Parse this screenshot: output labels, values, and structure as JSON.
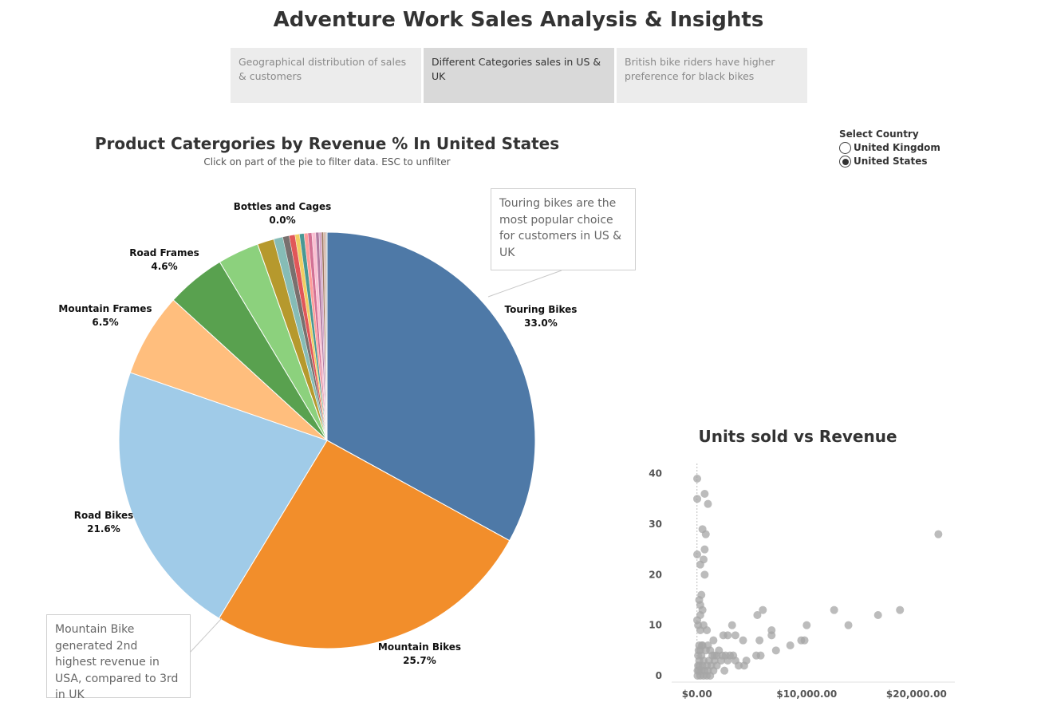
{
  "page": {
    "title": "Adventure Work Sales Analysis & Insights",
    "tabs": [
      {
        "label": "Geographical distribution of sales & customers",
        "active": false
      },
      {
        "label": "Different Categories sales in US & UK",
        "active": true
      },
      {
        "label": "British bike riders have higher preference for black bikes",
        "active": false
      }
    ]
  },
  "filter": {
    "title": "Select Country",
    "options": [
      {
        "label": "United Kingdom",
        "selected": false
      },
      {
        "label": "United States",
        "selected": true
      }
    ]
  },
  "callouts": {
    "touring": "Touring bikes are the most popular choice for customers in US & UK",
    "mountain": "Mountain Bike generated 2nd highest revenue in USA, compared to 3rd in UK"
  },
  "chart_data": [
    {
      "type": "pie",
      "title": "Product Catergories by Revenue % In United States",
      "subtitle": "Click on part of the pie to filter data. ESC to unfilter",
      "slices": [
        {
          "name": "Touring Bikes",
          "value": 33.0,
          "label": "33.0%",
          "color": "#4e79a7",
          "labeled": true
        },
        {
          "name": "Mountain Bikes",
          "value": 25.7,
          "label": "25.7%",
          "color": "#f28e2b",
          "labeled": true
        },
        {
          "name": "Road Bikes",
          "value": 21.6,
          "label": "21.6%",
          "color": "#a0cbe8",
          "labeled": true
        },
        {
          "name": "Mountain Frames",
          "value": 6.5,
          "label": "6.5%",
          "color": "#ffbe7d",
          "labeled": true
        },
        {
          "name": "Road Frames",
          "value": 4.6,
          "label": "4.6%",
          "color": "#59a14f",
          "labeled": true
        },
        {
          "name": "",
          "value": 3.2,
          "label": "",
          "color": "#8cd17d",
          "labeled": false
        },
        {
          "name": "",
          "value": 1.3,
          "label": "",
          "color": "#b6992d",
          "labeled": false
        },
        {
          "name": "",
          "value": 0.7,
          "label": "",
          "color": "#86bcb6",
          "labeled": false
        },
        {
          "name": "",
          "value": 0.5,
          "label": "",
          "color": "#79706e",
          "labeled": false
        },
        {
          "name": "",
          "value": 0.45,
          "label": "",
          "color": "#e15759",
          "labeled": false
        },
        {
          "name": "",
          "value": 0.35,
          "label": "",
          "color": "#f1ce63",
          "labeled": false
        },
        {
          "name": "",
          "value": 0.35,
          "label": "",
          "color": "#499894",
          "labeled": false
        },
        {
          "name": "",
          "value": 0.3,
          "label": "",
          "color": "#ff9d9a",
          "labeled": false
        },
        {
          "name": "",
          "value": 0.3,
          "label": "",
          "color": "#d37295",
          "labeled": false
        },
        {
          "name": "",
          "value": 0.3,
          "label": "",
          "color": "#fabfd2",
          "labeled": false
        },
        {
          "name": "",
          "value": 0.25,
          "label": "",
          "color": "#b07aa1",
          "labeled": false
        },
        {
          "name": "",
          "value": 0.2,
          "label": "",
          "color": "#d4a6c8",
          "labeled": false
        },
        {
          "name": "",
          "value": 0.15,
          "label": "",
          "color": "#9d7660",
          "labeled": false
        },
        {
          "name": "",
          "value": 0.15,
          "label": "",
          "color": "#d7b5a6",
          "labeled": false
        },
        {
          "name": "",
          "value": 0.1,
          "label": "",
          "color": "#bab0ac",
          "labeled": false
        },
        {
          "name": "Bottles and Cages",
          "value": 0.02,
          "label": "0.0%",
          "color": "#a0cbe8",
          "labeled": true
        }
      ]
    },
    {
      "type": "scatter",
      "title": "Units sold vs Revenue",
      "xlabel": "",
      "ylabel": "",
      "x_ticks": [
        {
          "value": 0,
          "label": "$0.00"
        },
        {
          "value": 10000,
          "label": "$10,000.00"
        },
        {
          "value": 20000,
          "label": "$20,000.00"
        }
      ],
      "y_ticks": [
        0,
        10,
        20,
        30,
        40
      ],
      "xlim": [
        -1000,
        23500
      ],
      "ylim": [
        0,
        42
      ],
      "point_color": "#a5a5a5",
      "points": [
        [
          20,
          39
        ],
        [
          20,
          35
        ],
        [
          700,
          36
        ],
        [
          1000,
          34
        ],
        [
          500,
          29
        ],
        [
          800,
          28
        ],
        [
          20,
          24
        ],
        [
          700,
          25
        ],
        [
          600,
          23
        ],
        [
          300,
          22
        ],
        [
          700,
          20
        ],
        [
          400,
          16
        ],
        [
          200,
          15
        ],
        [
          300,
          14
        ],
        [
          500,
          13
        ],
        [
          300,
          12
        ],
        [
          20,
          11
        ],
        [
          100,
          10
        ],
        [
          600,
          10
        ],
        [
          300,
          9
        ],
        [
          900,
          9
        ],
        [
          3200,
          10
        ],
        [
          6000,
          13
        ],
        [
          5500,
          12
        ],
        [
          10000,
          10
        ],
        [
          12500,
          13
        ],
        [
          13800,
          10
        ],
        [
          16500,
          12
        ],
        [
          18500,
          13
        ],
        [
          22000,
          28
        ],
        [
          9500,
          7
        ],
        [
          9800,
          7
        ],
        [
          8500,
          6
        ],
        [
          6800,
          9
        ],
        [
          6800,
          8
        ],
        [
          5700,
          7
        ],
        [
          4200,
          7
        ],
        [
          3500,
          8
        ],
        [
          2800,
          8
        ],
        [
          2400,
          8
        ],
        [
          1500,
          7
        ],
        [
          1000,
          6
        ],
        [
          500,
          6
        ],
        [
          200,
          6
        ],
        [
          2000,
          5
        ],
        [
          1600,
          4
        ],
        [
          1200,
          5
        ],
        [
          800,
          5
        ],
        [
          300,
          5
        ],
        [
          100,
          4
        ],
        [
          3300,
          4
        ],
        [
          3000,
          4
        ],
        [
          2600,
          4
        ],
        [
          2300,
          4
        ],
        [
          1800,
          4
        ],
        [
          1400,
          4
        ],
        [
          4500,
          3
        ],
        [
          3800,
          2
        ],
        [
          5400,
          4
        ],
        [
          5800,
          4
        ],
        [
          7200,
          5
        ],
        [
          2800,
          3
        ],
        [
          2200,
          3
        ],
        [
          1600,
          3
        ],
        [
          1100,
          3
        ],
        [
          600,
          3
        ],
        [
          200,
          3
        ],
        [
          4300,
          2
        ],
        [
          3500,
          3
        ],
        [
          1800,
          2
        ],
        [
          1300,
          2
        ],
        [
          900,
          2
        ],
        [
          500,
          2
        ],
        [
          100,
          2
        ],
        [
          2500,
          1
        ],
        [
          1500,
          1
        ],
        [
          1000,
          1
        ],
        [
          700,
          1
        ],
        [
          400,
          1
        ],
        [
          150,
          1
        ],
        [
          50,
          0
        ],
        [
          300,
          0
        ],
        [
          600,
          0
        ],
        [
          900,
          0
        ],
        [
          1200,
          0
        ],
        [
          50,
          1
        ],
        [
          200,
          2
        ],
        [
          400,
          4
        ],
        [
          150,
          5
        ],
        [
          450,
          6
        ]
      ]
    }
  ]
}
